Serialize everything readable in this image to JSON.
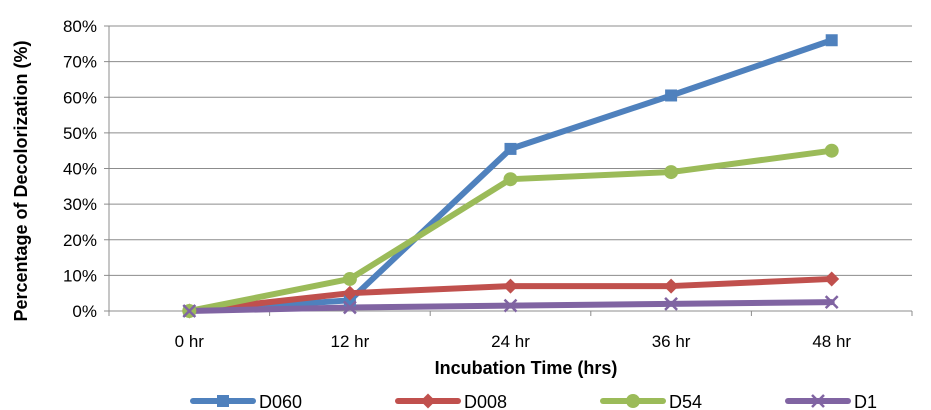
{
  "chart_data": {
    "type": "line",
    "title": "",
    "xlabel": "Incubation Time (hrs)",
    "ylabel": "Percentage of Decolorization (%)",
    "categories": [
      "0 hr",
      "12 hr",
      "24 hr",
      "36 hr",
      "48 hr"
    ],
    "ylim": [
      0,
      80
    ],
    "yticks": [
      "0%",
      "10%",
      "20%",
      "30%",
      "40%",
      "50%",
      "60%",
      "70%",
      "80%"
    ],
    "grid": true,
    "legend_position": "bottom",
    "series": [
      {
        "name": "D060",
        "color": "#4F81BD",
        "marker": "square",
        "values": [
          0,
          3,
          45.5,
          60.5,
          76
        ]
      },
      {
        "name": "D008",
        "color": "#C0504D",
        "marker": "diamond",
        "values": [
          0,
          5,
          7,
          7,
          9
        ]
      },
      {
        "name": "D54",
        "color": "#9BBB59",
        "marker": "circle",
        "values": [
          0,
          9,
          37,
          39,
          45
        ]
      },
      {
        "name": "D1",
        "color": "#8064A2",
        "marker": "x",
        "values": [
          0,
          1,
          1.5,
          2,
          2.5
        ]
      }
    ]
  }
}
